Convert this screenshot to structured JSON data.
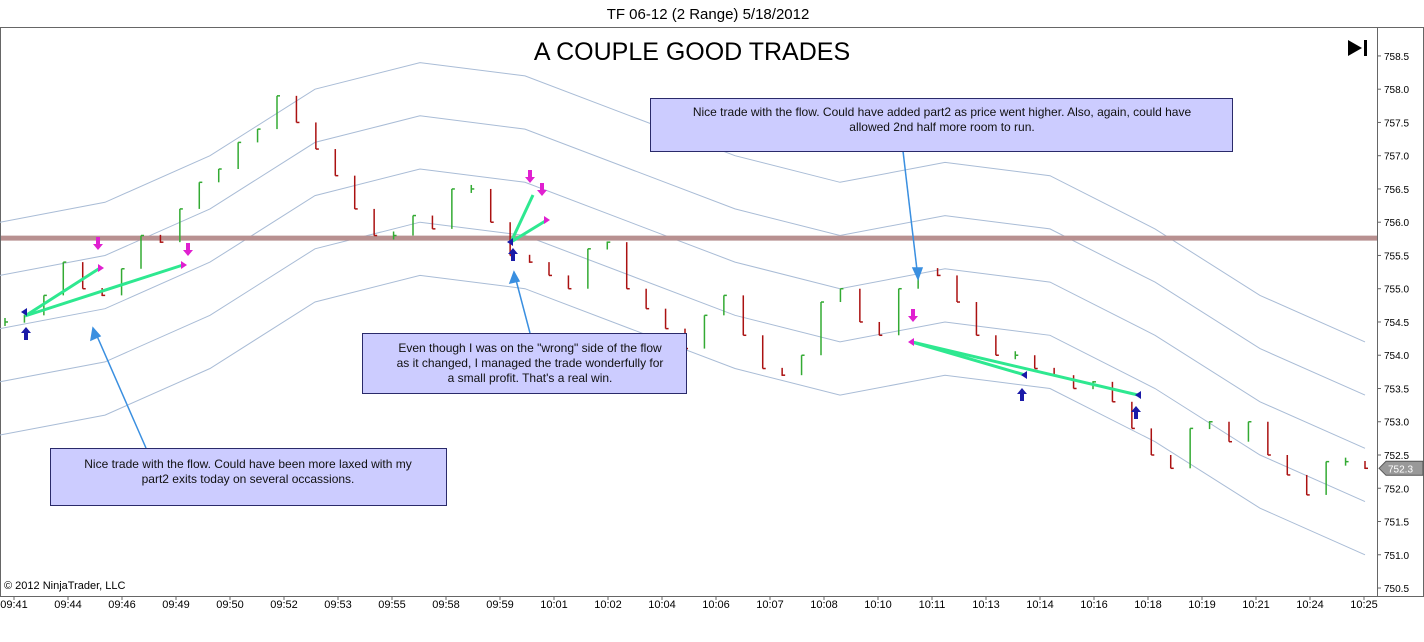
{
  "header": "TF 06-12 (2 Range)  5/18/2012",
  "copyright": "© 2012 NinjaTrader, LLC",
  "annotations": [
    {
      "lines": [
        "Nice trade with the flow.  Could have been more laxed with my",
        "part2 exits today on several occassions."
      ]
    },
    {
      "lines": [
        "Even though I was on the \"wrong\" side of the flow",
        "as it changed, I managed the trade wonderfully for",
        "a small profit. That's a real win."
      ]
    },
    {
      "lines": [
        "Nice trade with the flow.  Could have added part2 as price went higher.  Also, again, could have",
        "allowed 2nd half more room to run."
      ]
    }
  ],
  "chart_data": {
    "type": "range-bars",
    "title": "A COUPLE GOOD TRADES",
    "xtick_labels": [
      "09:41",
      "09:44",
      "09:46",
      "09:49",
      "09:50",
      "09:52",
      "09:53",
      "09:55",
      "09:58",
      "09:59",
      "10:01",
      "10:02",
      "10:04",
      "10:06",
      "10:07",
      "10:08",
      "10:10",
      "10:11",
      "10:13",
      "10:14",
      "10:16",
      "10:18",
      "10:19",
      "10:21",
      "10:24",
      "10:25"
    ],
    "values": [
      754.5,
      754.6,
      754.9,
      755.4,
      755.0,
      754.9,
      755.3,
      755.8,
      755.7,
      756.2,
      756.6,
      756.8,
      757.2,
      757.4,
      757.9,
      757.5,
      757.1,
      756.7,
      756.2,
      755.8,
      755.8,
      756.1,
      755.9,
      756.5,
      756.5,
      756.0,
      755.5,
      755.4,
      755.2,
      755.0,
      755.6,
      755.7,
      755.0,
      754.7,
      754.4,
      754.1,
      754.6,
      754.9,
      754.3,
      753.8,
      753.7,
      754.0,
      754.8,
      755.0,
      754.5,
      754.3,
      755.0,
      755.3,
      755.2,
      754.8,
      754.3,
      754.0,
      754.0,
      753.8,
      753.7,
      753.5,
      753.6,
      753.3,
      752.9,
      752.5,
      752.3,
      752.9,
      753.0,
      752.7,
      753.0,
      752.5,
      752.2,
      751.9,
      752.4,
      752.4,
      752.3
    ],
    "up_color": "#33aa33",
    "down_color": "#aa1111",
    "bands": [
      {
        "color": "#a9bcd6",
        "values": [
          756.0,
          756.3,
          757.0,
          758.0,
          758.4,
          758.2,
          757.6,
          757.0,
          756.6,
          756.9,
          756.7,
          755.9,
          754.9,
          754.2
        ]
      },
      {
        "color": "#a9bcd6",
        "values": [
          755.2,
          755.5,
          756.2,
          757.2,
          757.6,
          757.4,
          756.8,
          756.2,
          755.8,
          756.1,
          755.9,
          755.1,
          754.1,
          753.4
        ]
      },
      {
        "color": "#a9bcd6",
        "values": [
          754.4,
          754.7,
          755.4,
          756.4,
          756.8,
          756.6,
          756.0,
          755.4,
          755.0,
          755.3,
          755.1,
          754.3,
          753.3,
          752.6
        ]
      },
      {
        "color": "#a9bcd6",
        "values": [
          753.6,
          753.9,
          754.6,
          755.6,
          756.0,
          755.8,
          755.2,
          754.6,
          754.2,
          754.5,
          754.3,
          753.5,
          752.5,
          751.8
        ]
      },
      {
        "color": "#a9bcd6",
        "values": [
          752.8,
          753.1,
          753.8,
          754.8,
          755.2,
          755.0,
          754.4,
          753.8,
          753.4,
          753.7,
          753.5,
          752.7,
          751.7,
          751.0
        ]
      }
    ],
    "level_line": 755.76,
    "level_color": "#b89090",
    "last_price": 752.3,
    "ylim": [
      750.38,
      758.92
    ],
    "yticks": [
      750.5,
      {
        "value": 751,
        "label": "751.0"
      },
      751.5,
      {
        "value": 752,
        "label": "752.0"
      },
      752.5,
      {
        "value": 753,
        "label": "753.0"
      },
      753.5,
      {
        "value": 754,
        "label": "754.0"
      },
      754.5,
      {
        "value": 755,
        "label": "755.0"
      },
      755.5,
      {
        "value": 756,
        "label": "756.0"
      },
      756.5,
      {
        "value": 757,
        "label": "757.0"
      },
      757.5,
      {
        "value": 758,
        "label": "758.0"
      },
      758.5
    ]
  }
}
